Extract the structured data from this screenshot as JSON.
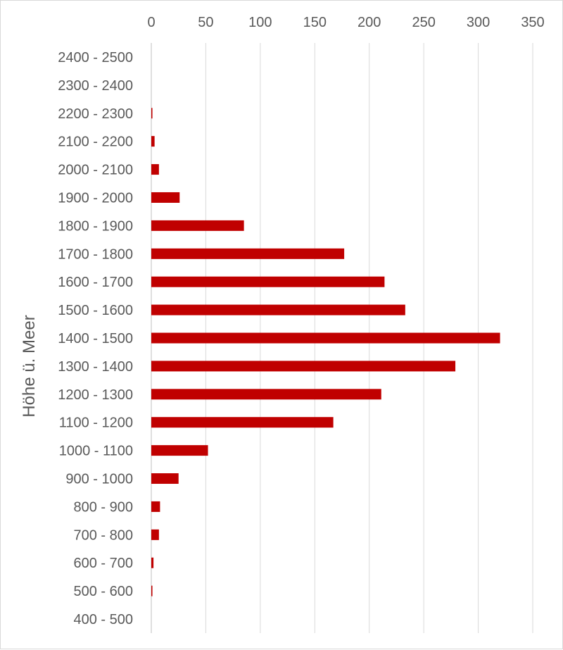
{
  "chart_data": {
    "type": "bar",
    "orientation": "horizontal",
    "title": "",
    "xlabel": "",
    "ylabel": "Höhe ü. Meer",
    "x_axis_position": "top",
    "xlim": [
      0,
      350
    ],
    "x_ticks": [
      0,
      50,
      100,
      150,
      200,
      250,
      300,
      350
    ],
    "grid": "vertical",
    "legend": "none",
    "bar_color": "#C00000",
    "categories": [
      "2400 - 2500",
      "2300 - 2400",
      "2200 - 2300",
      "2100 - 2200",
      "2000 - 2100",
      "1900 - 2000",
      "1800 - 1900",
      "1700 - 1800",
      "1600 - 1700",
      "1500 - 1600",
      "1400 - 1500",
      "1300 - 1400",
      "1200 - 1300",
      "1100 - 1200",
      "1000 - 1100",
      "900 - 1000",
      "800 - 900",
      "700 - 800",
      "600 - 700",
      "500 - 600",
      "400 - 500"
    ],
    "values": [
      0,
      0,
      1,
      3,
      7,
      26,
      85,
      177,
      214,
      233,
      320,
      279,
      211,
      167,
      52,
      25,
      8,
      7,
      2,
      1,
      0
    ]
  }
}
